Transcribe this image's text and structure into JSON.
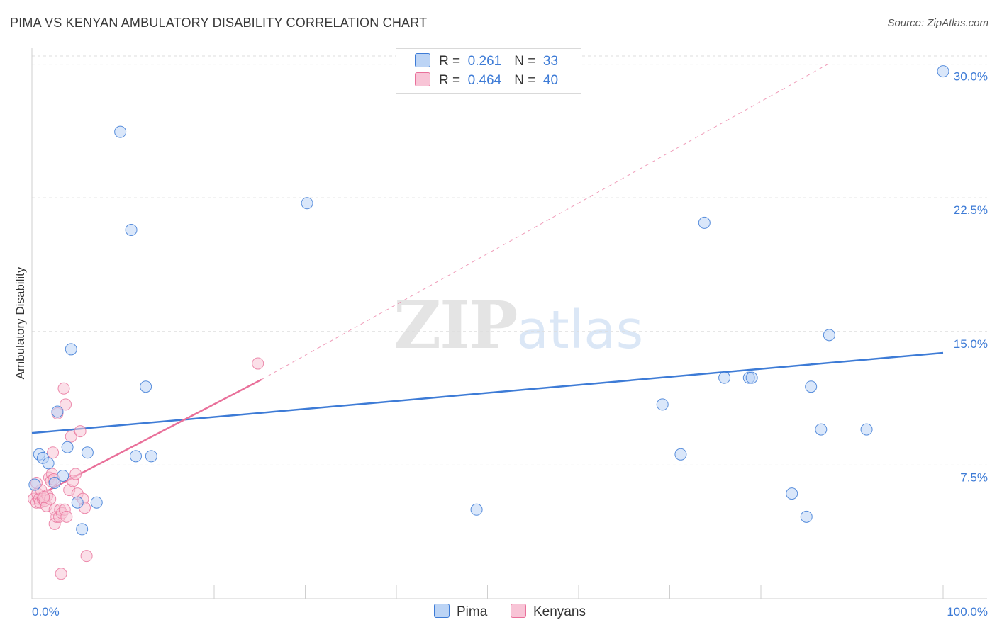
{
  "title": "PIMA VS KENYAN AMBULATORY DISABILITY CORRELATION CHART",
  "source": "Source: ZipAtlas.com",
  "watermark": {
    "zip": "ZIP",
    "atlas": "atlas"
  },
  "colors": {
    "pima": "#3d7bd6",
    "pima_fill": "#bcd4f5",
    "kenyans": "#e9709a",
    "kenyans_fill": "#f8c4d6",
    "grid": "#dddddd",
    "axis_text": "#3d7bd6"
  },
  "legend": {
    "rows": [
      {
        "r_label": "R =",
        "r_value": "0.261",
        "n_label": "N =",
        "n_value": "33"
      },
      {
        "r_label": "R =",
        "r_value": "0.464",
        "n_label": "N =",
        "n_value": "40"
      }
    ]
  },
  "bottom_legend": {
    "pima": "Pima",
    "kenyans": "Kenyans"
  },
  "chart_data": {
    "type": "scatter",
    "title": "PIMA VS KENYAN AMBULATORY DISABILITY CORRELATION CHART",
    "xlabel": "",
    "ylabel": "Ambulatory Disability",
    "xlim": [
      0,
      100
    ],
    "ylim": [
      0,
      30.5
    ],
    "x_tick_labels": [
      "0.0%",
      "100.0%"
    ],
    "y_ticks": [
      7.5,
      15.0,
      22.5,
      30.0
    ],
    "y_tick_labels": [
      "7.5%",
      "15.0%",
      "22.5%",
      "30.0%"
    ],
    "series": [
      {
        "name": "Pima",
        "r": 0.261,
        "n": 33,
        "points": [
          [
            0.3,
            6.4
          ],
          [
            0.8,
            8.1
          ],
          [
            1.2,
            7.9
          ],
          [
            1.8,
            7.6
          ],
          [
            2.5,
            6.5
          ],
          [
            2.8,
            10.5
          ],
          [
            3.4,
            6.9
          ],
          [
            3.9,
            8.5
          ],
          [
            4.3,
            14.0
          ],
          [
            5.0,
            5.4
          ],
          [
            5.5,
            3.9
          ],
          [
            6.1,
            8.2
          ],
          [
            7.1,
            5.4
          ],
          [
            9.7,
            26.2
          ],
          [
            10.9,
            20.7
          ],
          [
            11.4,
            8.0
          ],
          [
            12.5,
            11.9
          ],
          [
            13.1,
            8.0
          ],
          [
            30.2,
            22.2
          ],
          [
            48.8,
            5.0
          ],
          [
            69.2,
            10.9
          ],
          [
            71.2,
            8.1
          ],
          [
            73.8,
            21.1
          ],
          [
            76.0,
            12.4
          ],
          [
            78.7,
            12.4
          ],
          [
            79.0,
            12.4
          ],
          [
            83.4,
            5.9
          ],
          [
            85.0,
            4.6
          ],
          [
            85.5,
            11.9
          ],
          [
            86.6,
            9.5
          ],
          [
            87.5,
            14.8
          ],
          [
            91.6,
            9.5
          ],
          [
            100.0,
            29.6
          ]
        ],
        "trend": {
          "x": [
            0,
            100
          ],
          "y": [
            9.3,
            13.8
          ]
        }
      },
      {
        "name": "Kenyans",
        "r": 0.464,
        "n": 40,
        "points": [
          [
            0.2,
            5.6
          ],
          [
            0.5,
            5.4
          ],
          [
            0.6,
            5.9
          ],
          [
            0.8,
            5.6
          ],
          [
            0.9,
            5.4
          ],
          [
            1.0,
            6.1
          ],
          [
            1.2,
            5.6
          ],
          [
            1.4,
            5.5
          ],
          [
            1.6,
            5.2
          ],
          [
            1.7,
            5.8
          ],
          [
            1.9,
            6.8
          ],
          [
            2.0,
            5.6
          ],
          [
            2.1,
            6.6
          ],
          [
            2.2,
            7.0
          ],
          [
            2.3,
            8.2
          ],
          [
            2.5,
            5.0
          ],
          [
            2.5,
            4.2
          ],
          [
            2.7,
            4.6
          ],
          [
            2.8,
            10.4
          ],
          [
            3.0,
            4.6
          ],
          [
            3.1,
            5.0
          ],
          [
            3.2,
            1.4
          ],
          [
            3.3,
            4.8
          ],
          [
            3.5,
            11.8
          ],
          [
            3.6,
            5.0
          ],
          [
            3.7,
            10.9
          ],
          [
            3.8,
            4.6
          ],
          [
            4.1,
            6.1
          ],
          [
            4.3,
            9.1
          ],
          [
            4.5,
            6.6
          ],
          [
            4.8,
            7.0
          ],
          [
            5.0,
            5.9
          ],
          [
            5.3,
            9.4
          ],
          [
            5.6,
            5.6
          ],
          [
            5.8,
            5.1
          ],
          [
            6.0,
            2.4
          ],
          [
            0.5,
            6.5
          ],
          [
            1.3,
            5.7
          ],
          [
            2.4,
            6.7
          ],
          [
            24.8,
            13.2
          ]
        ],
        "trend": {
          "x": [
            0,
            25.2
          ],
          "y": [
            5.6,
            12.3
          ]
        },
        "trend_extension": {
          "x": [
            25.2,
            87.7
          ],
          "y": [
            12.3,
            30.1
          ]
        }
      }
    ]
  }
}
